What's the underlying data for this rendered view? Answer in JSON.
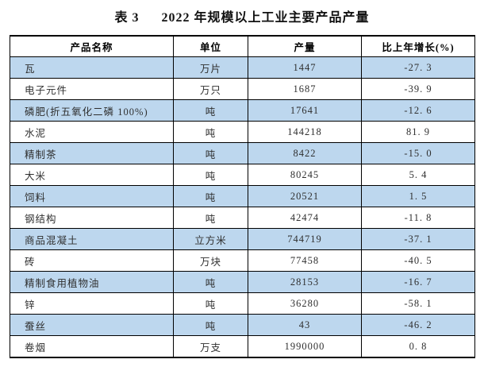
{
  "title": {
    "label": "表 3",
    "text": "2022 年规模以上工业主要产品产量"
  },
  "table": {
    "headers": [
      "产品名称",
      "单位",
      "产量",
      "比上年增长(%)"
    ],
    "rows": [
      {
        "name": "瓦",
        "unit": "万片",
        "output": "1447",
        "growth": "-27. 3"
      },
      {
        "name": "电子元件",
        "unit": "万只",
        "output": "1687",
        "growth": "-39. 9"
      },
      {
        "name": "磷肥(折五氧化二磷 100%)",
        "unit": "吨",
        "output": "17641",
        "growth": "-12. 6"
      },
      {
        "name": "水泥",
        "unit": "吨",
        "output": "144218",
        "growth": "81. 9"
      },
      {
        "name": "精制茶",
        "unit": "吨",
        "output": "8422",
        "growth": "-15. 0"
      },
      {
        "name": "大米",
        "unit": "吨",
        "output": "80245",
        "growth": "5. 4"
      },
      {
        "name": "饲料",
        "unit": "吨",
        "output": "20521",
        "growth": "1. 5"
      },
      {
        "name": "钢结构",
        "unit": "吨",
        "output": "42474",
        "growth": "-11. 8"
      },
      {
        "name": "商品混凝土",
        "unit": "立方米",
        "output": "744719",
        "growth": "-37. 1"
      },
      {
        "name": "砖",
        "unit": "万块",
        "output": "77458",
        "growth": "-40. 5"
      },
      {
        "name": "精制食用植物油",
        "unit": "吨",
        "output": "28153",
        "growth": "-16. 7"
      },
      {
        "name": "锌",
        "unit": "吨",
        "output": "36280",
        "growth": "-58. 1"
      },
      {
        "name": "蚕丝",
        "unit": "吨",
        "output": "43",
        "growth": "-46. 2"
      },
      {
        "name": "卷烟",
        "unit": "万支",
        "output": "1990000",
        "growth": "0. 8"
      }
    ]
  },
  "colors": {
    "row_band": "#bdd7ee",
    "border": "#000000",
    "title_text": "#111111",
    "body_text": "#2f2f2f"
  }
}
